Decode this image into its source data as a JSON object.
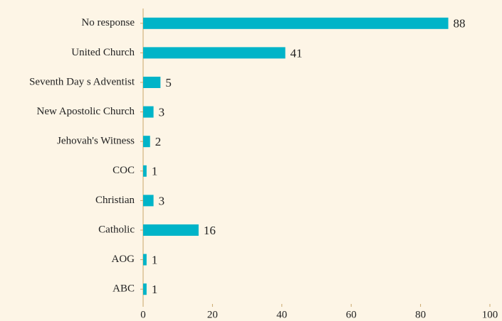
{
  "chart_data": {
    "type": "bar",
    "orientation": "horizontal",
    "categories": [
      "No response",
      "United Church",
      "Seventh Day s Adventist",
      "New Apostolic Church",
      "Jehovah's Witness",
      "COC",
      "Christian",
      "Catholic",
      "AOG",
      "ABC"
    ],
    "values": [
      88,
      41,
      5,
      3,
      2,
      1,
      3,
      16,
      1,
      1
    ],
    "color": "#00b4c8",
    "xlim": [
      0,
      100
    ],
    "xticks": [
      0,
      20,
      40,
      60,
      80,
      100
    ],
    "grid": false
  }
}
